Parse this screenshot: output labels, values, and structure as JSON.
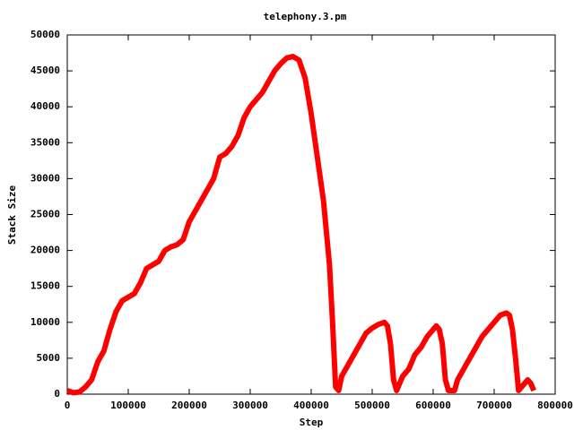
{
  "chart_data": {
    "type": "line",
    "title": "telephony.3.pm",
    "x_label": "Step",
    "y_label": "Stack Size",
    "x": [
      0,
      10000,
      20000,
      30000,
      40000,
      50000,
      60000,
      70000,
      80000,
      90000,
      100000,
      110000,
      120000,
      130000,
      140000,
      150000,
      160000,
      170000,
      180000,
      190000,
      200000,
      210000,
      220000,
      230000,
      240000,
      250000,
      260000,
      270000,
      280000,
      290000,
      300000,
      310000,
      320000,
      330000,
      340000,
      350000,
      360000,
      370000,
      380000,
      390000,
      400000,
      410000,
      420000,
      430000,
      435000,
      440000,
      445000,
      450000,
      460000,
      470000,
      480000,
      490000,
      500000,
      510000,
      520000,
      525000,
      530000,
      535000,
      540000,
      545000,
      550000,
      560000,
      570000,
      580000,
      590000,
      600000,
      605000,
      610000,
      615000,
      620000,
      625000,
      635000,
      640000,
      650000,
      660000,
      670000,
      680000,
      690000,
      700000,
      710000,
      720000,
      725000,
      730000,
      735000,
      740000,
      745000,
      750000,
      755000,
      760000,
      765000
    ],
    "series": [
      {
        "name": "telephony.3.pm",
        "color": "#ff0000",
        "values": [
          500,
          200,
          300,
          1000,
          2000,
          4500,
          6000,
          9000,
          11500,
          13000,
          13500,
          14000,
          15500,
          17500,
          18000,
          18500,
          20000,
          20500,
          20800,
          21500,
          24000,
          25500,
          27000,
          28500,
          30000,
          33000,
          33500,
          34500,
          36000,
          38500,
          40000,
          41000,
          42000,
          43500,
          45000,
          46000,
          46800,
          47000,
          46500,
          44000,
          39000,
          33000,
          27000,
          18000,
          10000,
          1000,
          500,
          2500,
          4000,
          5500,
          7000,
          8500,
          9200,
          9700,
          10000,
          9500,
          7000,
          2000,
          500,
          1500,
          2500,
          3500,
          5500,
          6500,
          8000,
          9000,
          9500,
          9000,
          7000,
          2000,
          500,
          500,
          2000,
          3500,
          5000,
          6500,
          8000,
          9000,
          10000,
          11000,
          11300,
          11000,
          9000,
          5000,
          500,
          1000,
          1500,
          2000,
          1500,
          500
        ]
      }
    ],
    "xlim": [
      0,
      800000
    ],
    "xticks": [
      0,
      100000,
      200000,
      300000,
      400000,
      500000,
      600000,
      700000,
      800000
    ],
    "ylim": [
      0,
      50000
    ],
    "yticks": [
      0,
      5000,
      10000,
      15000,
      20000,
      25000,
      30000,
      35000,
      40000,
      45000,
      50000
    ]
  }
}
